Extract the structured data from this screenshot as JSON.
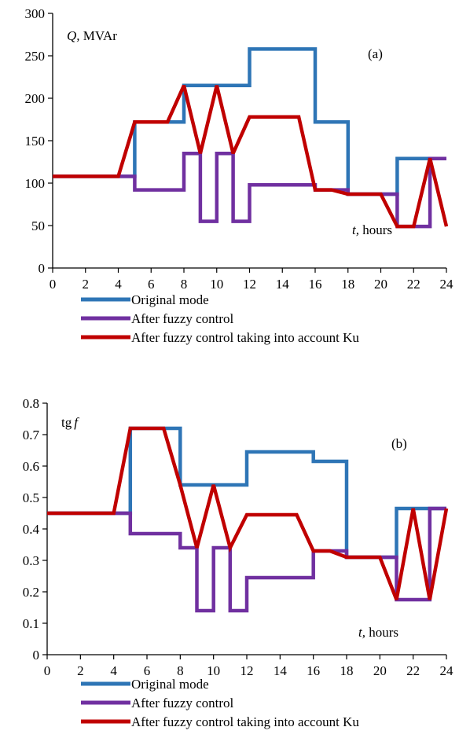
{
  "chart_data": [
    {
      "type": "line",
      "panel_label": "(a)",
      "ylabel_var": "Q,",
      "ylabel_unit": "MVAr",
      "xlabel_var": "t,",
      "xlabel_unit": "hours",
      "xlim": [
        0,
        24
      ],
      "ylim": [
        0,
        300
      ],
      "xticks": [
        0,
        2,
        4,
        6,
        8,
        10,
        12,
        14,
        16,
        18,
        20,
        22,
        24
      ],
      "yticks": [
        0,
        50,
        100,
        150,
        200,
        250,
        300
      ],
      "ytick_labels": [
        "0",
        "50",
        "100",
        "150",
        "200",
        "250",
        "300"
      ],
      "grid": false,
      "legend_position": "bottom",
      "series": [
        {
          "name": "Original mode",
          "color": "#2E75B6",
          "points": [
            [
              0,
              108
            ],
            [
              5,
              108
            ],
            [
              5,
              172
            ],
            [
              8,
              172
            ],
            [
              8,
              215
            ],
            [
              12,
              215
            ],
            [
              12,
              258
            ],
            [
              16,
              258
            ],
            [
              16,
              172
            ],
            [
              18,
              172
            ],
            [
              18,
              87
            ],
            [
              21,
              87
            ],
            [
              21,
              129
            ],
            [
              24,
              129
            ]
          ]
        },
        {
          "name": "After fuzzy control",
          "color": "#7030A0",
          "points": [
            [
              0,
              108
            ],
            [
              5,
              108
            ],
            [
              5,
              92
            ],
            [
              8,
              92
            ],
            [
              8,
              135
            ],
            [
              9,
              135
            ],
            [
              9,
              55
            ],
            [
              10,
              55
            ],
            [
              10,
              135
            ],
            [
              11,
              135
            ],
            [
              11,
              55
            ],
            [
              12,
              55
            ],
            [
              12,
              98
            ],
            [
              16,
              98
            ],
            [
              16,
              92
            ],
            [
              18,
              92
            ],
            [
              18,
              87
            ],
            [
              21,
              87
            ],
            [
              21,
              49
            ],
            [
              23,
              49
            ],
            [
              23,
              129
            ],
            [
              24,
              129
            ]
          ]
        },
        {
          "name": "After fuzzy control taking into account Ku",
          "color": "#C00000",
          "points": [
            [
              0,
              108
            ],
            [
              4,
              108
            ],
            [
              5,
              172
            ],
            [
              7,
              172
            ],
            [
              8,
              215
            ],
            [
              9,
              135
            ],
            [
              10,
              215
            ],
            [
              11,
              135
            ],
            [
              12,
              178
            ],
            [
              15,
              178
            ],
            [
              16,
              92
            ],
            [
              17,
              92
            ],
            [
              18,
              87
            ],
            [
              20,
              87
            ],
            [
              21,
              49
            ],
            [
              22,
              49
            ],
            [
              23,
              129
            ],
            [
              24,
              49
            ]
          ]
        }
      ]
    },
    {
      "type": "line",
      "panel_label": "(b)",
      "ylabel_var": "tg",
      "ylabel_unit": "f",
      "xlabel_var": "t,",
      "xlabel_unit": "hours",
      "xlim": [
        0,
        24
      ],
      "ylim": [
        0,
        0.8
      ],
      "xticks": [
        0,
        2,
        4,
        6,
        8,
        10,
        12,
        14,
        16,
        18,
        20,
        22,
        24
      ],
      "yticks": [
        0,
        0.1,
        0.2,
        0.3,
        0.4,
        0.5,
        0.6,
        0.7,
        0.8
      ],
      "ytick_labels": [
        "0",
        "0.1",
        "0.2",
        "0.3",
        "0.4",
        "0.5",
        "0.6",
        "0.7",
        "0.8"
      ],
      "grid": false,
      "legend_position": "bottom",
      "series": [
        {
          "name": "Original mode",
          "color": "#2E75B6",
          "points": [
            [
              0,
              0.45
            ],
            [
              5,
              0.45
            ],
            [
              5,
              0.72
            ],
            [
              8,
              0.72
            ],
            [
              8,
              0.54
            ],
            [
              12,
              0.54
            ],
            [
              12,
              0.645
            ],
            [
              16,
              0.645
            ],
            [
              16,
              0.615
            ],
            [
              18,
              0.615
            ],
            [
              18,
              0.31
            ],
            [
              21,
              0.31
            ],
            [
              21,
              0.465
            ],
            [
              24,
              0.465
            ]
          ]
        },
        {
          "name": "After fuzzy control",
          "color": "#7030A0",
          "points": [
            [
              0,
              0.45
            ],
            [
              5,
              0.45
            ],
            [
              5,
              0.385
            ],
            [
              7,
              0.385
            ],
            [
              8,
              0.385
            ],
            [
              8,
              0.34
            ],
            [
              9,
              0.34
            ],
            [
              9,
              0.14
            ],
            [
              10,
              0.14
            ],
            [
              10,
              0.34
            ],
            [
              11,
              0.34
            ],
            [
              11,
              0.14
            ],
            [
              12,
              0.14
            ],
            [
              12,
              0.245
            ],
            [
              16,
              0.245
            ],
            [
              16,
              0.33
            ],
            [
              18,
              0.33
            ],
            [
              18,
              0.31
            ],
            [
              21,
              0.31
            ],
            [
              21,
              0.175
            ],
            [
              23,
              0.175
            ],
            [
              23,
              0.465
            ],
            [
              24,
              0.465
            ]
          ]
        },
        {
          "name": "After fuzzy control taking into account Ku",
          "color": "#C00000",
          "points": [
            [
              0,
              0.45
            ],
            [
              4,
              0.45
            ],
            [
              5,
              0.72
            ],
            [
              7,
              0.72
            ],
            [
              8,
              0.54
            ],
            [
              9,
              0.34
            ],
            [
              10,
              0.54
            ],
            [
              11,
              0.34
            ],
            [
              12,
              0.445
            ],
            [
              15,
              0.445
            ],
            [
              16,
              0.33
            ],
            [
              17,
              0.33
            ],
            [
              18,
              0.31
            ],
            [
              20,
              0.31
            ],
            [
              21,
              0.175
            ],
            [
              22,
              0.465
            ],
            [
              23,
              0.175
            ],
            [
              24,
              0.465
            ]
          ]
        }
      ]
    }
  ]
}
